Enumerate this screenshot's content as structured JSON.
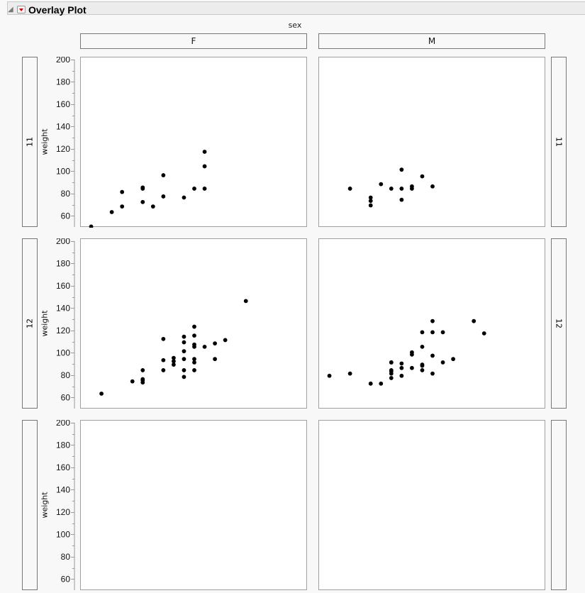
{
  "header": {
    "title": "Overlay Plot"
  },
  "chart_data": {
    "type": "scatter",
    "group_x_label": "sex",
    "columns": [
      "F",
      "M"
    ],
    "ylabel": "weight",
    "xlabel": "",
    "ylim": [
      50,
      202.5
    ],
    "xlim": [
      50,
      72
    ],
    "yticks": [
      60,
      80,
      100,
      120,
      140,
      160,
      180,
      200
    ],
    "grid": false,
    "marker_color": "#000000",
    "rows": [
      {
        "label": "11",
        "panels": [
          {
            "column": "F",
            "points": [
              [
                51,
                51
              ],
              [
                53,
                64
              ],
              [
                54,
                69
              ],
              [
                54,
                82
              ],
              [
                56,
                73
              ],
              [
                56,
                85
              ],
              [
                56,
                86
              ],
              [
                57,
                69
              ],
              [
                58,
                78
              ],
              [
                58,
                97
              ],
              [
                60,
                77
              ],
              [
                61,
                85
              ],
              [
                62,
                85
              ],
              [
                62,
                105
              ],
              [
                62,
                118
              ]
            ]
          },
          {
            "column": "M",
            "points": [
              [
                53,
                85
              ],
              [
                55,
                77
              ],
              [
                55,
                74
              ],
              [
                55,
                70
              ],
              [
                56,
                89
              ],
              [
                57,
                85
              ],
              [
                58,
                102
              ],
              [
                58,
                85
              ],
              [
                58,
                75
              ],
              [
                59,
                87
              ],
              [
                59,
                85
              ],
              [
                60,
                96
              ],
              [
                61,
                87
              ]
            ]
          }
        ]
      },
      {
        "label": "12",
        "panels": [
          {
            "column": "F",
            "points": [
              [
                52,
                64
              ],
              [
                55,
                75
              ],
              [
                56,
                85
              ],
              [
                56,
                77
              ],
              [
                56,
                76
              ],
              [
                56,
                74
              ],
              [
                58,
                113
              ],
              [
                58,
                94
              ],
              [
                58,
                85
              ],
              [
                59,
                96
              ],
              [
                59,
                93
              ],
              [
                59,
                90
              ],
              [
                60,
                115
              ],
              [
                60,
                110
              ],
              [
                60,
                102
              ],
              [
                60,
                95
              ],
              [
                60,
                85
              ],
              [
                60,
                79
              ],
              [
                61,
                124
              ],
              [
                61,
                116
              ],
              [
                61,
                108
              ],
              [
                61,
                106
              ],
              [
                61,
                95
              ],
              [
                61,
                92
              ],
              [
                61,
                85
              ],
              [
                62,
                106
              ],
              [
                63,
                109
              ],
              [
                63,
                95
              ],
              [
                64,
                112
              ],
              [
                66,
                147
              ]
            ]
          },
          {
            "column": "M",
            "points": [
              [
                51,
                80
              ],
              [
                53,
                82
              ],
              [
                55,
                73
              ],
              [
                56,
                73
              ],
              [
                57,
                92
              ],
              [
                57,
                92
              ],
              [
                57,
                85
              ],
              [
                57,
                84
              ],
              [
                57,
                82
              ],
              [
                57,
                78
              ],
              [
                58,
                91
              ],
              [
                58,
                87
              ],
              [
                58,
                80
              ],
              [
                59,
                101
              ],
              [
                59,
                99
              ],
              [
                59,
                87
              ],
              [
                60,
                119
              ],
              [
                60,
                106
              ],
              [
                60,
                90
              ],
              [
                60,
                89
              ],
              [
                60,
                85
              ],
              [
                61,
                129
              ],
              [
                61,
                119
              ],
              [
                61,
                98
              ],
              [
                61,
                82
              ],
              [
                62,
                119
              ],
              [
                62,
                92
              ],
              [
                63,
                95
              ],
              [
                65,
                129
              ],
              [
                66,
                118
              ]
            ]
          }
        ]
      },
      {
        "panels": [
          {
            "column": "F",
            "points": []
          },
          {
            "column": "M",
            "points": []
          }
        ]
      }
    ]
  }
}
